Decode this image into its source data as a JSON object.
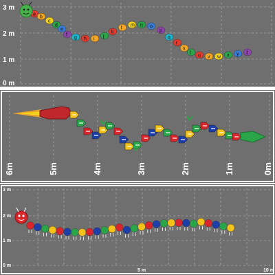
{
  "panels": [
    {
      "y_ticks": [
        "3 m",
        "2 m",
        "1 m",
        "0 m"
      ],
      "letters": [
        "a",
        "b",
        "c",
        "d",
        "e",
        "f",
        "g",
        "h",
        "i",
        "j",
        "k",
        "l",
        "m",
        "n",
        "o",
        "p",
        "q",
        "r",
        "s",
        "t",
        "u",
        "v",
        "w",
        "x",
        "y",
        "z"
      ],
      "colors": [
        "#e23b2e",
        "#f5a623",
        "#f3d21b",
        "#2aa54a",
        "#3a7bd5",
        "#8e44ad",
        "#1fb5c9",
        "#e23b2e",
        "#f5a623",
        "#2aa54a"
      ]
    },
    {
      "x_ticks": [
        "6m",
        "5m",
        "4m",
        "3m",
        "2m",
        "1m",
        "0m"
      ],
      "colors": [
        "#f3c21b",
        "#2aa54a",
        "#d9262b",
        "#1f3fa8",
        "#ffffff"
      ]
    },
    {
      "y_ticks": [
        "3 m",
        "2 m",
        "1 m",
        "0 m"
      ],
      "x_ticks": [
        "5 m",
        "10 m"
      ],
      "colors": [
        "#d9262b",
        "#1f3fa8",
        "#2aa54a",
        "#f3c21b"
      ]
    }
  ]
}
